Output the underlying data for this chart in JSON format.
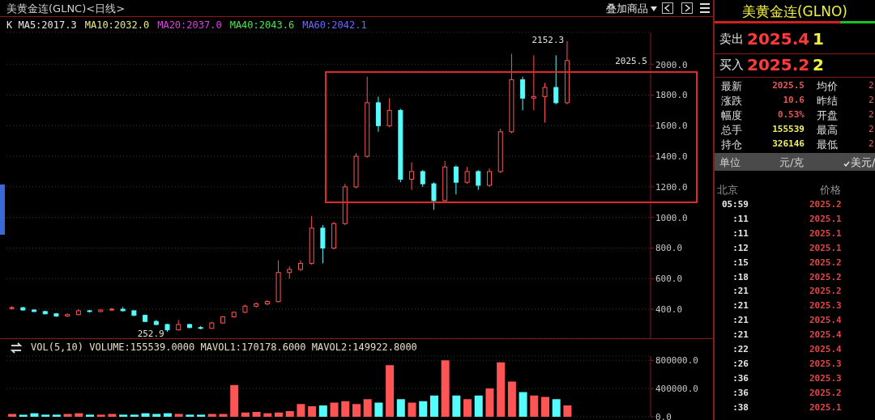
{
  "chart_data": [
    {
      "type": "candlestick",
      "title": "美黄金连(GLNC)<日线>",
      "annotations": [
        "K MA5:2017.3",
        "MA10:2032.0",
        "MA20:2037.0",
        "MA40:2043.6",
        "MA60:2042.1",
        "252.9",
        "2152.3",
        "2025.5",
        "叠加商品"
      ],
      "categories": [
        null,
        null,
        null,
        null,
        null,
        null,
        null,
        null,
        null,
        null,
        null,
        null,
        null,
        null,
        null,
        null,
        null,
        null,
        null,
        null,
        null,
        null,
        null,
        null,
        null,
        null,
        null,
        null,
        null,
        null,
        null,
        null,
        null,
        null,
        null,
        null,
        null,
        null,
        null,
        null,
        null,
        null,
        null,
        null,
        null,
        null,
        null,
        null,
        null,
        null,
        null,
        null,
        null,
        null,
        null,
        null,
        null,
        null
      ],
      "ohlc": [
        [
          405,
          420,
          398,
          410
        ],
        [
          410,
          415,
          390,
          395
        ],
        [
          395,
          400,
          380,
          385
        ],
        [
          385,
          390,
          365,
          370
        ],
        [
          370,
          375,
          350,
          355
        ],
        [
          355,
          372,
          350,
          365
        ],
        [
          365,
          400,
          360,
          390
        ],
        [
          390,
          395,
          378,
          385
        ],
        [
          385,
          400,
          380,
          395
        ],
        [
          395,
          410,
          390,
          400
        ],
        [
          400,
          415,
          385,
          390
        ],
        [
          390,
          392,
          355,
          360
        ],
        [
          360,
          365,
          315,
          320
        ],
        [
          320,
          330,
          295,
          300
        ],
        [
          300,
          305,
          252.9,
          265
        ],
        [
          265,
          330,
          260,
          300
        ],
        [
          300,
          305,
          275,
          280
        ],
        [
          280,
          290,
          268,
          275
        ],
        [
          275,
          318,
          272,
          310
        ],
        [
          310,
          355,
          305,
          350
        ],
        [
          350,
          385,
          345,
          380
        ],
        [
          380,
          430,
          375,
          420
        ],
        [
          420,
          445,
          410,
          435
        ],
        [
          435,
          460,
          425,
          450
        ],
        [
          450,
          720,
          445,
          640
        ],
        [
          640,
          680,
          600,
          660
        ],
        [
          660,
          720,
          650,
          700
        ],
        [
          700,
          1010,
          690,
          930
        ],
        [
          930,
          950,
          700,
          800
        ],
        [
          800,
          970,
          790,
          960
        ],
        [
          960,
          1220,
          950,
          1200
        ],
        [
          1200,
          1420,
          1190,
          1400
        ],
        [
          1400,
          1920,
          1390,
          1750
        ],
        [
          1750,
          1790,
          1560,
          1600
        ],
        [
          1600,
          1780,
          1590,
          1700
        ],
        [
          1700,
          1710,
          1230,
          1250
        ],
        [
          1250,
          1360,
          1180,
          1300
        ],
        [
          1300,
          1310,
          1200,
          1220
        ],
        [
          1220,
          1230,
          1050,
          1110
        ],
        [
          1110,
          1370,
          1100,
          1330
        ],
        [
          1330,
          1340,
          1150,
          1230
        ],
        [
          1230,
          1330,
          1220,
          1300
        ],
        [
          1300,
          1310,
          1180,
          1210
        ],
        [
          1210,
          1320,
          1200,
          1300
        ],
        [
          1300,
          1580,
          1290,
          1560
        ],
        [
          1560,
          2070,
          1550,
          1900
        ],
        [
          1900,
          1920,
          1700,
          1780
        ],
        [
          1780,
          2060,
          1700,
          1790
        ],
        [
          1790,
          1880,
          1620,
          1850
        ],
        [
          1850,
          2060,
          1740,
          1750
        ],
        [
          1750,
          2152.3,
          1740,
          2025.5
        ],
        null,
        null,
        null,
        null,
        null,
        null,
        null
      ],
      "colors": [
        "#ff5454",
        "#54fcfc",
        "#54fcfc",
        "#54fcfc",
        "#54fcfc",
        "#ff5454",
        "#ff5454",
        "#54fcfc",
        "#ff5454",
        "#ff5454",
        "#54fcfc",
        "#54fcfc",
        "#54fcfc",
        "#54fcfc",
        "#54fcfc",
        "#ff5454",
        "#54fcfc",
        "#54fcfc",
        "#ff5454",
        "#ff5454",
        "#ff5454",
        "#ff5454",
        "#ff5454",
        "#ff5454",
        "#ff5454",
        "#ff5454",
        "#ff5454",
        "#ff5454",
        "#54fcfc",
        "#ff5454",
        "#ff5454",
        "#ff5454",
        "#ff5454",
        "#54fcfc",
        "#ff5454",
        "#54fcfc",
        "#ff5454",
        "#54fcfc",
        "#54fcfc",
        "#ff5454",
        "#54fcfc",
        "#ff5454",
        "#54fcfc",
        "#ff5454",
        "#ff5454",
        "#ff5454",
        "#54fcfc",
        "#ff5454",
        "#ff5454",
        "#54fcfc",
        "#ff5454",
        null,
        null,
        null,
        null,
        null,
        null,
        null
      ],
      "ylim": [
        210,
        2210
      ],
      "yticks": [
        {
          "value": 400,
          "label": "400.0"
        },
        {
          "value": 600,
          "label": "600.0"
        },
        {
          "value": 800,
          "label": "800.0"
        },
        {
          "value": 1000,
          "label": "1000.0"
        },
        {
          "value": 1200,
          "label": "1200.0"
        },
        {
          "value": 1400,
          "label": "1400.0"
        },
        {
          "value": 1600,
          "label": "1600.0"
        },
        {
          "value": 1800,
          "label": "1800.0"
        },
        {
          "value": 2000,
          "label": "2000.0"
        }
      ],
      "grid": "y",
      "tick_labels": "y"
    },
    {
      "type": "bar",
      "title": "VOL(5,10) VOLUME:155539.0000 MAVOL1:170178.6000 MAVOL2:149922.8000",
      "categories": [
        null,
        null,
        null,
        null,
        null,
        null,
        null,
        null,
        null,
        null,
        null,
        null,
        null,
        null,
        null,
        null,
        null,
        null,
        null,
        null,
        null,
        null,
        null,
        null,
        null,
        null,
        null,
        null,
        null,
        null,
        null,
        null,
        null,
        null,
        null,
        null,
        null,
        null,
        null,
        null,
        null,
        null,
        null,
        null,
        null,
        null,
        null,
        null,
        null,
        null,
        null,
        null,
        null,
        null,
        null,
        null,
        null,
        null
      ],
      "values": [
        40000,
        30000,
        50000,
        30000,
        30000,
        40000,
        50000,
        30000,
        30000,
        40000,
        30000,
        30000,
        50000,
        40000,
        50000,
        40000,
        30000,
        30000,
        40000,
        40000,
        450000,
        60000,
        70000,
        50000,
        60000,
        80000,
        180000,
        150000,
        160000,
        200000,
        220000,
        180000,
        250000,
        200000,
        730000,
        250000,
        200000,
        220000,
        300000,
        800000,
        300000,
        250000,
        300000,
        400000,
        770000,
        500000,
        350000,
        300000,
        280000,
        250000,
        160000,
        null,
        null,
        null,
        null,
        null,
        null,
        null
      ],
      "colors": [
        "#ff5454",
        "#54fcfc",
        "#54fcfc",
        "#54fcfc",
        "#54fcfc",
        "#ff5454",
        "#ff5454",
        "#54fcfc",
        "#ff5454",
        "#ff5454",
        "#54fcfc",
        "#54fcfc",
        "#54fcfc",
        "#54fcfc",
        "#54fcfc",
        "#ff5454",
        "#54fcfc",
        "#54fcfc",
        "#ff5454",
        "#ff5454",
        "#ff5454",
        "#ff5454",
        "#ff5454",
        "#ff5454",
        "#ff5454",
        "#ff5454",
        "#ff5454",
        "#ff5454",
        "#54fcfc",
        "#ff5454",
        "#ff5454",
        "#ff5454",
        "#ff5454",
        "#54fcfc",
        "#ff5454",
        "#54fcfc",
        "#ff5454",
        "#54fcfc",
        "#54fcfc",
        "#ff5454",
        "#54fcfc",
        "#ff5454",
        "#54fcfc",
        "#ff5454",
        "#ff5454",
        "#ff5454",
        "#54fcfc",
        "#ff5454",
        "#ff5454",
        "#54fcfc",
        "#ff5454",
        null,
        null,
        null,
        null,
        null,
        null,
        null
      ],
      "ylim": [
        0,
        860000
      ],
      "yticks": [
        {
          "value": 0,
          "label": "0.0"
        },
        {
          "value": 400000,
          "label": "400000.0"
        },
        {
          "value": 800000,
          "label": "800000.0"
        }
      ],
      "grid": "y",
      "tick_labels": "y"
    },
    {
      "type": "other",
      "title": "美黄金连(GLNO)",
      "annotations": [
        "卖出",
        "2025.4",
        "1",
        "买入",
        "2025.2",
        "2",
        "最新",
        "2025.5",
        "均价",
        "2",
        "涨跌",
        "10.6",
        "昨结",
        "2",
        "幅度",
        "0.53%",
        "开盘",
        "2",
        "总手",
        "155539",
        "最高",
        "2",
        "持仓",
        "326146",
        "最低",
        "2",
        "单位",
        "元/克",
        "美元/",
        "北京",
        "价格",
        "05:59",
        "2025.2",
        ":11",
        "2025.1",
        ":11",
        "2025.1",
        ":12",
        "2025.1",
        ":15",
        "2025.2",
        ":18",
        "2025.2",
        ":21",
        "2025.2",
        ":21",
        "2025.3",
        ":21",
        "2025.4",
        ":21",
        "2025.4",
        ":22",
        "2025.4",
        ":26",
        "2025.3",
        ":36",
        "2025.3",
        ":36",
        "2025.2",
        ":38",
        "2025.1"
      ]
    }
  ]
}
